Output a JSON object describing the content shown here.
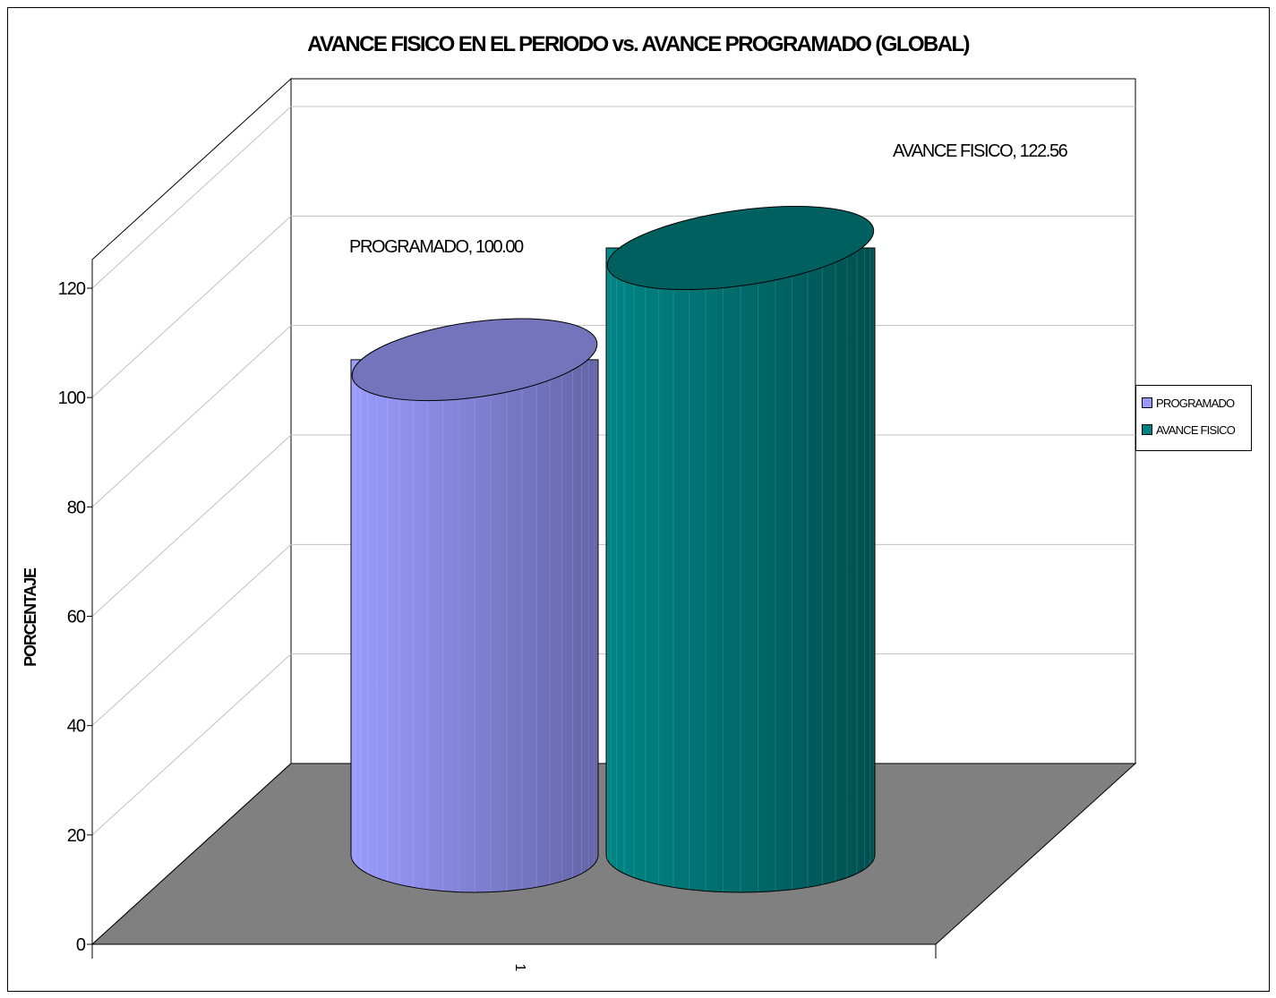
{
  "chart_data": {
    "type": "bar",
    "title": "AVANCE FISICO EN EL PERIODO vs. AVANCE PROGRAMADO (GLOBAL)",
    "xlabel": "",
    "ylabel": "PORCENTAJE",
    "categories": [
      "1"
    ],
    "ylim": [
      0,
      120
    ],
    "yticks": [
      0,
      20,
      40,
      60,
      80,
      100,
      120
    ],
    "series": [
      {
        "name": "PROGRAMADO",
        "values": [
          100.0
        ],
        "color": "#9999ff",
        "data_label": "PROGRAMADO, 100.00"
      },
      {
        "name": "AVANCE FISICO",
        "values": [
          122.56
        ],
        "color": "#008080",
        "data_label": "AVANCE FISICO, 122.56"
      }
    ],
    "legend": "right",
    "grid": true,
    "style": "3d-cylinder",
    "floor_color": "#808080"
  }
}
